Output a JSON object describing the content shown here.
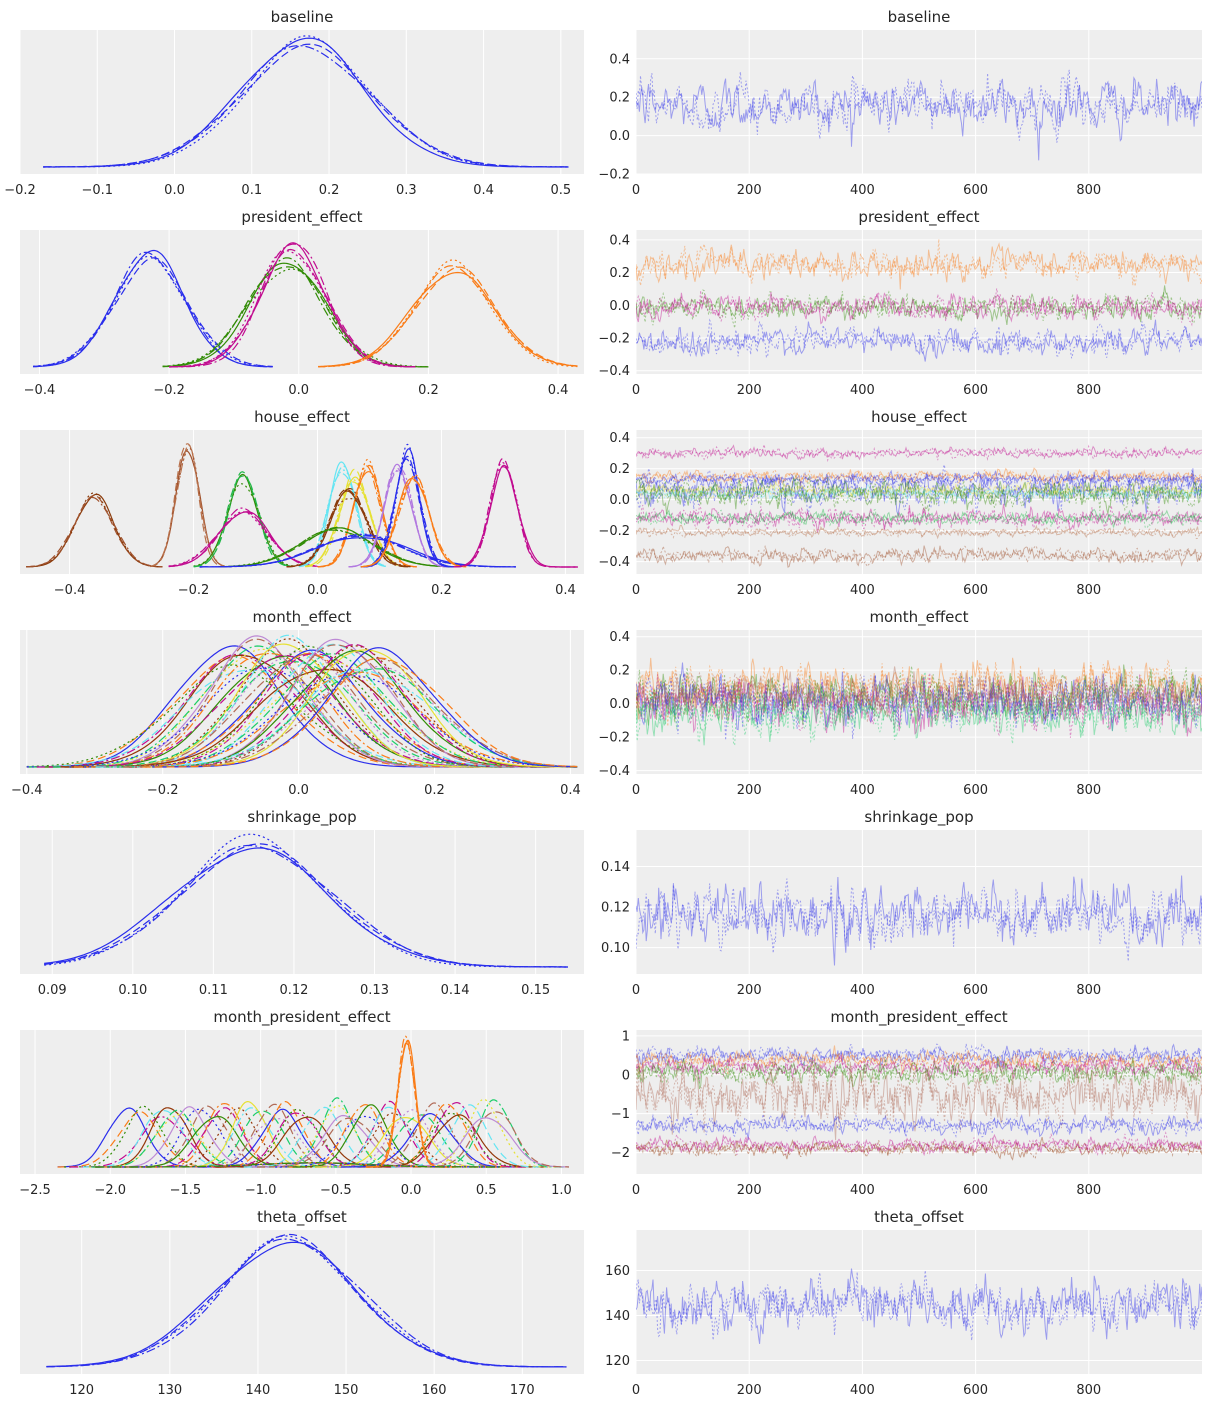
{
  "chart_data": [
    {
      "type": "line",
      "title": "baseline",
      "xticks": [
        -0.2,
        -0.1,
        0.0,
        0.1,
        0.2,
        0.3,
        0.4,
        0.5
      ],
      "xlim": [
        -0.2,
        0.53
      ],
      "series": [
        {
          "mode": "single",
          "mean": 0.17,
          "sd": 0.085,
          "xmin": -0.17,
          "xmax": 0.51,
          "colors": [
            "#2a2eec"
          ]
        }
      ]
    },
    {
      "type": "line",
      "title": "baseline",
      "xticks": [
        0,
        200,
        400,
        600,
        800
      ],
      "xlim": [
        0,
        1000
      ],
      "yticks": [
        -0.2,
        0.0,
        0.2,
        0.4
      ],
      "ylim": [
        -0.2,
        0.55
      ],
      "traces": [
        {
          "mean": 0.16,
          "sd": 0.085,
          "color": "#2a2eec"
        }
      ]
    },
    {
      "type": "line",
      "title": "president_effect",
      "xticks": [
        -0.4,
        -0.2,
        0.0,
        0.2,
        0.4
      ],
      "xlim": [
        -0.43,
        0.44
      ],
      "series": [
        {
          "mode": "single",
          "mean": -0.23,
          "sd": 0.055,
          "xmin": -0.41,
          "xmax": -0.04,
          "colors": [
            "#2a2eec"
          ]
        },
        {
          "mode": "single",
          "mean": -0.02,
          "sd": 0.06,
          "xmin": -0.21,
          "xmax": 0.2,
          "colors": [
            "#328c06"
          ]
        },
        {
          "mode": "single",
          "mean": -0.01,
          "sd": 0.05,
          "xmin": -0.2,
          "xmax": 0.18,
          "colors": [
            "#c10c90"
          ]
        },
        {
          "mode": "single",
          "mean": 0.24,
          "sd": 0.06,
          "xmin": 0.03,
          "xmax": 0.43,
          "colors": [
            "#fa7c17"
          ]
        }
      ]
    },
    {
      "type": "line",
      "title": "president_effect",
      "xticks": [
        0,
        200,
        400,
        600,
        800
      ],
      "xlim": [
        0,
        1000
      ],
      "yticks": [
        -0.4,
        -0.2,
        0.0,
        0.2,
        0.4
      ],
      "ylim": [
        -0.42,
        0.46
      ],
      "traces": [
        {
          "mean": 0.25,
          "sd": 0.06,
          "color": "#fa7c17"
        },
        {
          "mean": -0.01,
          "sd": 0.05,
          "color": "#328c06"
        },
        {
          "mean": -0.01,
          "sd": 0.05,
          "color": "#c10c90"
        },
        {
          "mean": -0.22,
          "sd": 0.055,
          "color": "#2a2eec"
        }
      ]
    },
    {
      "type": "line",
      "title": "house_effect",
      "xticks": [
        -0.4,
        -0.2,
        0.0,
        0.2,
        0.4
      ],
      "xlim": [
        -0.48,
        0.43
      ],
      "series": [
        {
          "mode": "single",
          "mean": -0.36,
          "sd": 0.032,
          "xmin": -0.47,
          "xmax": -0.25,
          "colors": [
            "#8a3a0a",
            "#a0522d"
          ]
        },
        {
          "mode": "single",
          "mean": -0.21,
          "sd": 0.018,
          "xmin": -0.27,
          "xmax": -0.15,
          "colors": [
            "#a0522d",
            "#b8704a"
          ]
        },
        {
          "mode": "single",
          "mean": -0.12,
          "sd": 0.025,
          "xmin": -0.2,
          "xmax": -0.04,
          "colors": [
            "#328c06",
            "#21b849"
          ]
        },
        {
          "mode": "single",
          "mean": -0.12,
          "sd": 0.04,
          "xmin": -0.24,
          "xmax": 0.0,
          "colors": [
            "#c10c90"
          ]
        },
        {
          "mode": "single",
          "mean": 0.04,
          "sd": 0.022,
          "xmin": -0.03,
          "xmax": 0.11,
          "colors": [
            "#65e5f3"
          ]
        },
        {
          "mode": "single",
          "mean": 0.06,
          "sd": 0.025,
          "xmin": -0.02,
          "xmax": 0.14,
          "colors": [
            "#e6e135"
          ]
        },
        {
          "mode": "single",
          "mean": 0.08,
          "sd": 0.022,
          "xmin": 0.0,
          "xmax": 0.16,
          "colors": [
            "#fa7c17"
          ]
        },
        {
          "mode": "single",
          "mean": 0.05,
          "sd": 0.03,
          "xmin": -0.05,
          "xmax": 0.15,
          "colors": [
            "#8a3a0a"
          ]
        },
        {
          "mode": "single",
          "mean": 0.03,
          "sd": 0.06,
          "xmin": -0.16,
          "xmax": 0.22,
          "colors": [
            "#328c06"
          ]
        },
        {
          "mode": "single",
          "mean": 0.07,
          "sd": 0.07,
          "xmin": -0.19,
          "xmax": 0.32,
          "colors": [
            "#2a2eec"
          ]
        },
        {
          "mode": "single",
          "mean": 0.13,
          "sd": 0.022,
          "xmin": 0.05,
          "xmax": 0.21,
          "colors": [
            "#b279e0"
          ]
        },
        {
          "mode": "single",
          "mean": 0.145,
          "sd": 0.02,
          "xmin": 0.07,
          "xmax": 0.22,
          "colors": [
            "#2a2eec"
          ]
        },
        {
          "mode": "single",
          "mean": 0.155,
          "sd": 0.025,
          "xmin": 0.07,
          "xmax": 0.24,
          "colors": [
            "#fa7c17"
          ]
        },
        {
          "mode": "single",
          "mean": 0.3,
          "sd": 0.022,
          "xmin": 0.22,
          "xmax": 0.42,
          "colors": [
            "#c10c90"
          ]
        }
      ]
    },
    {
      "type": "line",
      "title": "house_effect",
      "xticks": [
        0,
        200,
        400,
        600,
        800
      ],
      "xlim": [
        0,
        1000
      ],
      "yticks": [
        -0.4,
        -0.2,
        0.0,
        0.2,
        0.4
      ],
      "ylim": [
        -0.48,
        0.45
      ],
      "traces": [
        {
          "mean": 0.3,
          "sd": 0.022,
          "color": "#c10c90"
        },
        {
          "mean": 0.15,
          "sd": 0.025,
          "color": "#fa7c17"
        },
        {
          "mean": 0.13,
          "sd": 0.022,
          "color": "#2a2eec"
        },
        {
          "mean": 0.07,
          "sd": 0.07,
          "color": "#2a2eec"
        },
        {
          "mean": 0.06,
          "sd": 0.025,
          "color": "#e6e135"
        },
        {
          "mean": 0.04,
          "sd": 0.022,
          "color": "#65e5f3"
        },
        {
          "mean": 0.04,
          "sd": 0.06,
          "color": "#328c06"
        },
        {
          "mean": -0.12,
          "sd": 0.04,
          "color": "#c10c90"
        },
        {
          "mean": -0.12,
          "sd": 0.025,
          "color": "#21b849"
        },
        {
          "mean": -0.21,
          "sd": 0.018,
          "color": "#b8704a"
        },
        {
          "mean": -0.36,
          "sd": 0.032,
          "color": "#a0522d"
        }
      ]
    },
    {
      "type": "line",
      "title": "month_effect",
      "xticks": [
        -0.4,
        -0.2,
        0.0,
        0.2,
        0.4
      ],
      "xlim": [
        -0.41,
        0.42
      ],
      "series": [
        {
          "mode": "family",
          "count": 42,
          "meanRange": [
            -0.1,
            0.13
          ],
          "sd": 0.085,
          "xmin": -0.4,
          "xmax": 0.41,
          "colors": [
            "#2a2eec",
            "#fa7c17",
            "#328c06",
            "#c10c90",
            "#933708",
            "#65e5f3",
            "#e6e135",
            "#1ccd6a",
            "#bd8ad5",
            "#b16b57"
          ]
        }
      ]
    },
    {
      "type": "line",
      "title": "month_effect",
      "xticks": [
        0,
        200,
        400,
        600,
        800
      ],
      "xlim": [
        0,
        1000
      ],
      "yticks": [
        -0.4,
        -0.2,
        0.0,
        0.2,
        0.4
      ],
      "ylim": [
        -0.42,
        0.44
      ],
      "traces": [
        {
          "mean": 0.1,
          "sd": 0.09,
          "color": "#fa7c17"
        },
        {
          "mean": 0.05,
          "sd": 0.09,
          "color": "#328c06"
        },
        {
          "mean": 0.0,
          "sd": 0.09,
          "color": "#c10c90"
        },
        {
          "mean": 0.02,
          "sd": 0.09,
          "color": "#2a2eec"
        },
        {
          "mean": -0.06,
          "sd": 0.085,
          "color": "#1ccd6a"
        },
        {
          "mean": 0.05,
          "sd": 0.08,
          "color": "#b16b57"
        }
      ]
    },
    {
      "type": "line",
      "title": "shrinkage_pop",
      "xticks": [
        0.09,
        0.1,
        0.11,
        0.12,
        0.13,
        0.14,
        0.15
      ],
      "xlim": [
        0.086,
        0.156
      ],
      "series": [
        {
          "mode": "single",
          "mean": 0.115,
          "sd": 0.0095,
          "xmin": 0.089,
          "xmax": 0.154,
          "colors": [
            "#2a2eec"
          ]
        }
      ]
    },
    {
      "type": "line",
      "title": "shrinkage_pop",
      "xticks": [
        0,
        200,
        400,
        600,
        800
      ],
      "xlim": [
        0,
        1000
      ],
      "yticks": [
        0.1,
        0.12,
        0.14
      ],
      "ylim": [
        0.087,
        0.158
      ],
      "traces": [
        {
          "mean": 0.116,
          "sd": 0.0095,
          "color": "#2a2eec"
        }
      ]
    },
    {
      "type": "line",
      "title": "month_president_effect",
      "xticks": [
        -2.5,
        -2.0,
        -1.5,
        -1.0,
        -0.5,
        0.0,
        0.5,
        1.0
      ],
      "xlim": [
        -2.6,
        1.15
      ],
      "series": [
        {
          "mode": "family",
          "count": 50,
          "meanRange": [
            -1.85,
            0.6
          ],
          "sd": 0.13,
          "xmin": -2.35,
          "xmax": 1.05,
          "colors": [
            "#2a2eec",
            "#fa7c17",
            "#328c06",
            "#c10c90",
            "#933708",
            "#65e5f3",
            "#e6e135",
            "#1ccd6a",
            "#bd8ad5",
            "#b16b57"
          ]
        },
        {
          "mode": "single",
          "mean": -0.03,
          "sd": 0.06,
          "xmin": -0.3,
          "xmax": 0.3,
          "colors": [
            "#fa7c17"
          ]
        },
        {
          "mode": "single",
          "mean": -0.65,
          "sd": 0.35,
          "xmin": -2.1,
          "xmax": 0.6,
          "peakScale": 0.2,
          "colors": [
            "#b16b57",
            "#2a2eec",
            "#fa7c17",
            "#328c06",
            "#c10c90"
          ]
        }
      ]
    },
    {
      "type": "line",
      "title": "month_president_effect",
      "xticks": [
        0,
        200,
        400,
        600,
        800
      ],
      "xlim": [
        0,
        1000
      ],
      "yticks": [
        -2,
        -1,
        0,
        1
      ],
      "ylim": [
        -2.55,
        1.15
      ],
      "traces": [
        {
          "mean": 0.5,
          "sd": 0.15,
          "color": "#2a2eec"
        },
        {
          "mean": 0.35,
          "sd": 0.15,
          "color": "#fa7c17"
        },
        {
          "mean": 0.2,
          "sd": 0.15,
          "color": "#c10c90"
        },
        {
          "mean": 0.05,
          "sd": 0.2,
          "color": "#328c06"
        },
        {
          "mean": -0.5,
          "sd": 0.45,
          "color": "#b16b57"
        },
        {
          "mean": -1.3,
          "sd": 0.15,
          "color": "#2a2eec"
        },
        {
          "mean": -1.9,
          "sd": 0.12,
          "color": "#933708"
        },
        {
          "mean": -1.8,
          "sd": 0.12,
          "color": "#c10c90"
        }
      ]
    },
    {
      "type": "line",
      "title": "theta_offset",
      "xticks": [
        120,
        130,
        140,
        150,
        160,
        170
      ],
      "xlim": [
        113,
        177
      ],
      "series": [
        {
          "mode": "single",
          "mean": 143.5,
          "sd": 8.0,
          "xmin": 116,
          "xmax": 175,
          "colors": [
            "#2a2eec"
          ]
        }
      ]
    },
    {
      "type": "line",
      "title": "theta_offset",
      "xticks": [
        0,
        200,
        400,
        600,
        800
      ],
      "xlim": [
        0,
        1000
      ],
      "yticks": [
        120,
        140,
        160
      ],
      "ylim": [
        114,
        178
      ],
      "traces": [
        {
          "mean": 144,
          "sd": 7.5,
          "color": "#2a2eec"
        }
      ]
    }
  ]
}
